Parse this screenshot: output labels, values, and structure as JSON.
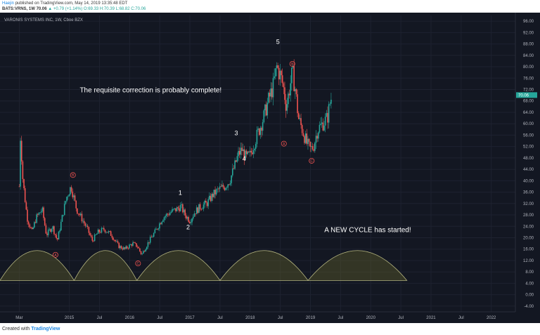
{
  "header": {
    "author": "Haejin",
    "published": "published on TradingView.com, May 14, 2019 13:35:48 EDT",
    "symbol": "BATS:VRNS, 1W",
    "last": "70.06",
    "change": "▲ +0.79 (+1.14%)",
    "ohlc": "O:69.33 H:70.39 L:68.82 C:70.06"
  },
  "footer": {
    "created_with": "Created with",
    "brand": "TradingView"
  },
  "chart_data": {
    "type": "candlestick",
    "title": "VARONIS SYSTEMS INC, 1W, Cboe BZX",
    "ylim": [
      -6,
      98
    ],
    "y_ticks": [
      -4,
      0,
      4,
      8,
      12,
      16,
      20,
      24,
      28,
      32,
      36,
      40,
      44,
      48,
      52,
      56,
      60,
      64,
      68,
      72,
      76,
      80,
      84,
      88,
      92,
      96
    ],
    "x_ticks": [
      "Mar",
      "2015",
      "Jul",
      "2016",
      "Jul",
      "2017",
      "Jul",
      "2018",
      "Jul",
      "2019",
      "Jul",
      "2020",
      "Jul",
      "2021",
      "Jul",
      "2022"
    ],
    "x_tick_dates": [
      2014.17,
      2015.0,
      2015.5,
      2016.0,
      2016.5,
      2017.0,
      2017.5,
      2018.0,
      2018.5,
      2019.0,
      2019.5,
      2020.0,
      2020.5,
      2021.0,
      2021.5,
      2022.0
    ],
    "xlim": [
      2013.85,
      2022.4
    ],
    "last_price": 70.06,
    "price_path": [
      [
        2014.17,
        38
      ],
      [
        2014.19,
        56
      ],
      [
        2014.23,
        40
      ],
      [
        2014.3,
        27
      ],
      [
        2014.38,
        22
      ],
      [
        2014.45,
        27
      ],
      [
        2014.55,
        30
      ],
      [
        2014.62,
        21
      ],
      [
        2014.72,
        24
      ],
      [
        2014.8,
        19
      ],
      [
        2014.88,
        27
      ],
      [
        2014.95,
        34
      ],
      [
        2015.03,
        38
      ],
      [
        2015.12,
        30
      ],
      [
        2015.2,
        27
      ],
      [
        2015.3,
        23
      ],
      [
        2015.38,
        19
      ],
      [
        2015.48,
        22
      ],
      [
        2015.58,
        23
      ],
      [
        2015.7,
        21
      ],
      [
        2015.82,
        17
      ],
      [
        2015.92,
        16
      ],
      [
        2016.05,
        18
      ],
      [
        2016.13,
        17
      ],
      [
        2016.2,
        14
      ],
      [
        2016.3,
        18
      ],
      [
        2016.42,
        22
      ],
      [
        2016.55,
        27
      ],
      [
        2016.68,
        29
      ],
      [
        2016.78,
        30
      ],
      [
        2016.85,
        31
      ],
      [
        2016.92,
        28
      ],
      [
        2017.0,
        26
      ],
      [
        2017.08,
        29
      ],
      [
        2017.18,
        31
      ],
      [
        2017.28,
        32
      ],
      [
        2017.38,
        35
      ],
      [
        2017.48,
        37
      ],
      [
        2017.58,
        38
      ],
      [
        2017.66,
        40
      ],
      [
        2017.74,
        45
      ],
      [
        2017.8,
        49
      ],
      [
        2017.86,
        51
      ],
      [
        2017.93,
        48
      ],
      [
        2018.0,
        49
      ],
      [
        2018.08,
        54
      ],
      [
        2018.15,
        58
      ],
      [
        2018.22,
        62
      ],
      [
        2018.3,
        68
      ],
      [
        2018.38,
        73
      ],
      [
        2018.44,
        80
      ],
      [
        2018.5,
        77
      ],
      [
        2018.55,
        73
      ],
      [
        2018.6,
        66
      ],
      [
        2018.65,
        72
      ],
      [
        2018.7,
        78
      ],
      [
        2018.75,
        72
      ],
      [
        2018.8,
        62
      ],
      [
        2018.88,
        57
      ],
      [
        2018.94,
        53
      ],
      [
        2019.0,
        51
      ],
      [
        2019.05,
        52
      ],
      [
        2019.12,
        58
      ],
      [
        2019.2,
        60
      ],
      [
        2019.28,
        62
      ],
      [
        2019.33,
        68
      ],
      [
        2019.36,
        70.06
      ]
    ],
    "wave_labels": [
      {
        "text": "1",
        "x": 2016.84,
        "y": 35
      },
      {
        "text": "2",
        "x": 2016.97,
        "y": 23
      },
      {
        "text": "3",
        "x": 2017.77,
        "y": 56
      },
      {
        "text": "4",
        "x": 2017.9,
        "y": 47
      },
      {
        "text": "5",
        "x": 2018.46,
        "y": 88
      }
    ],
    "circled_labels": [
      {
        "text": "A",
        "x": 2014.77,
        "y": 14
      },
      {
        "text": "B",
        "x": 2015.06,
        "y": 42
      },
      {
        "text": "C",
        "x": 2016.14,
        "y": 11
      },
      {
        "text": "A",
        "x": 2018.56,
        "y": 53
      },
      {
        "text": "B",
        "x": 2018.7,
        "y": 81
      },
      {
        "text": "C",
        "x": 2019.02,
        "y": 47
      }
    ],
    "annotations": [
      {
        "text": "The requisite correction is probably complete!",
        "x": 2016.35,
        "y": 71
      },
      {
        "text": "A NEW CYCLE has started!",
        "x": 2019.95,
        "y": 22
      }
    ],
    "cycle_arcs": [
      {
        "start": 2013.85,
        "end": 2015.08
      },
      {
        "start": 2015.08,
        "end": 2016.12
      },
      {
        "start": 2016.12,
        "end": 2017.5
      },
      {
        "start": 2017.5,
        "end": 2018.96
      },
      {
        "start": 2018.96,
        "end": 2020.6
      }
    ],
    "arc_base": 5,
    "arc_peak": 15.5,
    "colors": {
      "background": "#131722",
      "grid": "#1e2230",
      "up": "#26a69a",
      "down": "#ef5350",
      "arc_fill": "#5a5a2a",
      "arc_line": "#b5b580",
      "circle": "#ef5350",
      "price_tag": "#26a69a",
      "text": "#ffffff",
      "axis_text": "#b2b5be"
    }
  }
}
